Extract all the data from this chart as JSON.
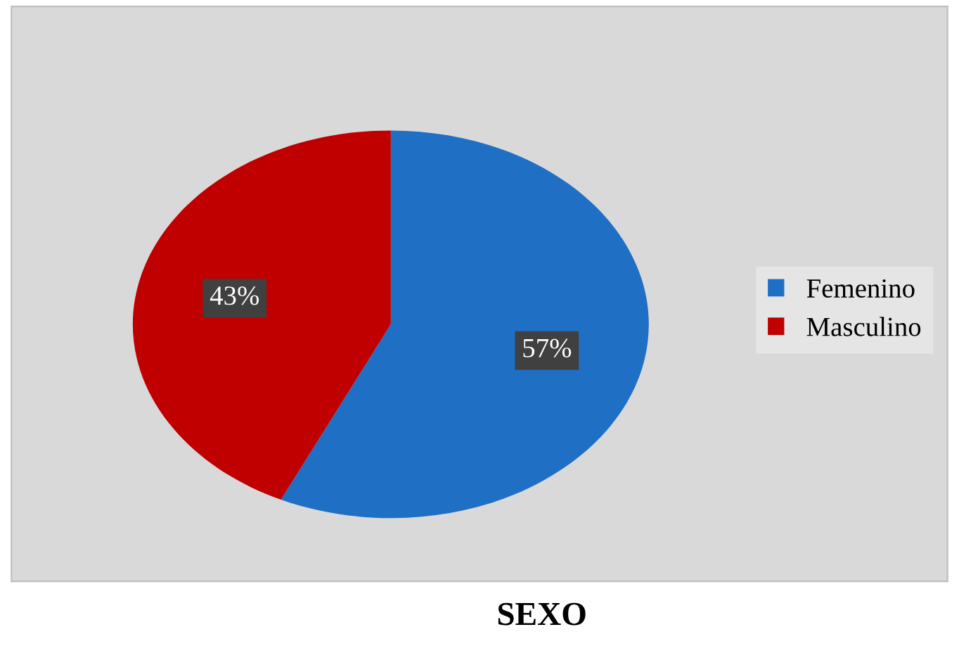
{
  "chart_data": {
    "type": "pie",
    "title": "SEXO",
    "categories": [
      "Femenino",
      "Masculino"
    ],
    "values": [
      57,
      43
    ],
    "colors": [
      "#1f6fc4",
      "#c00000"
    ],
    "value_labels": [
      "57%",
      "43%"
    ],
    "legend": "right"
  }
}
